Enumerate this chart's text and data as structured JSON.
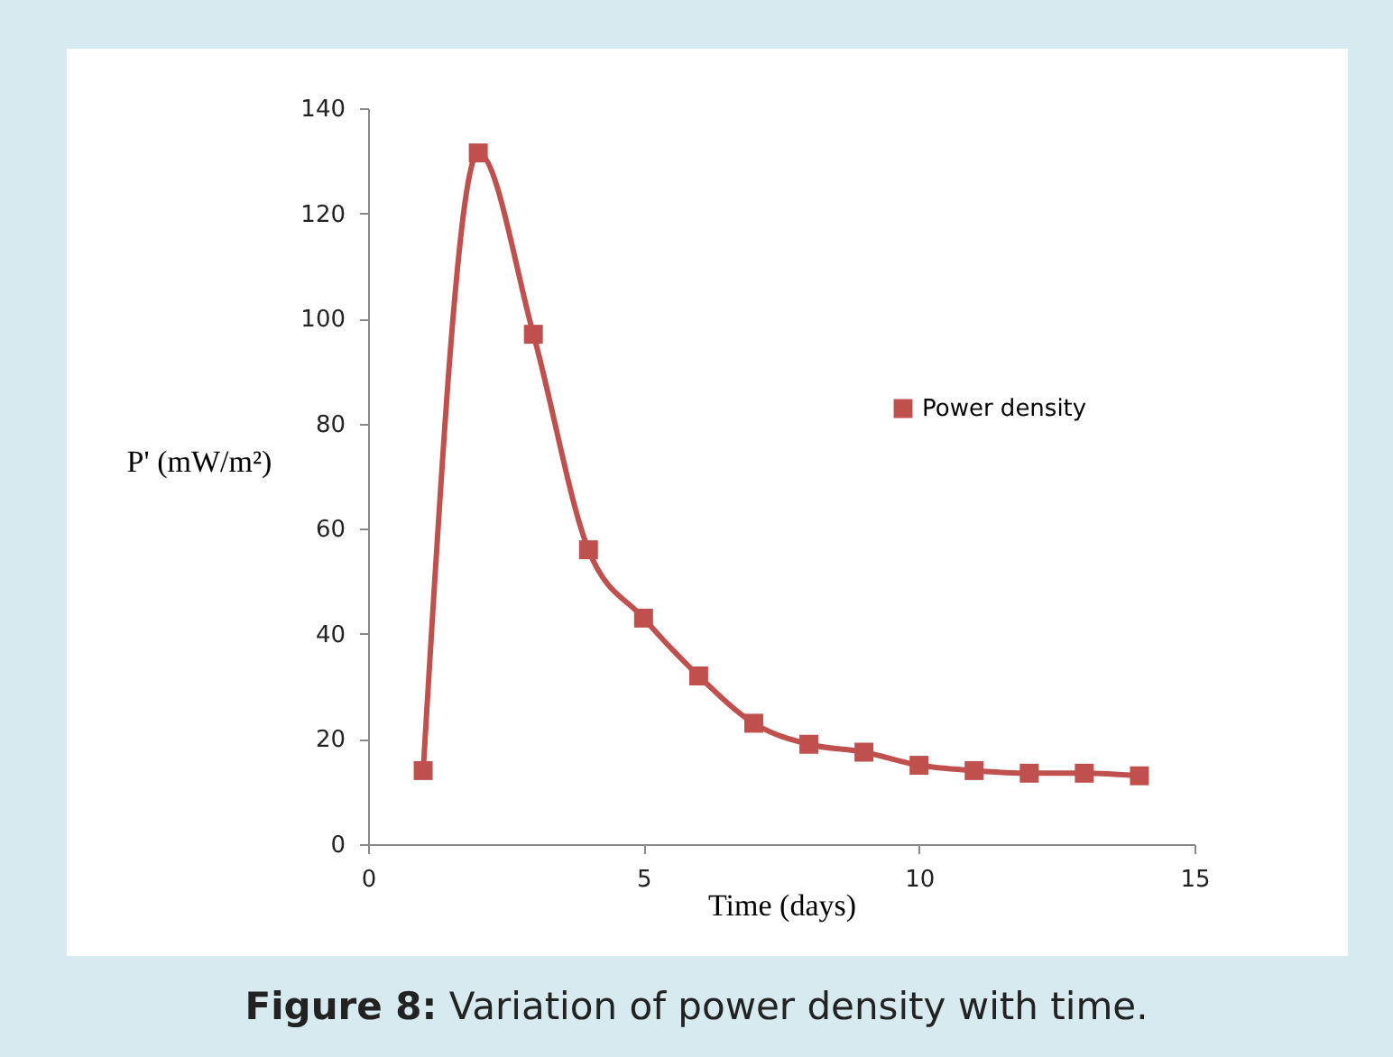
{
  "chart_data": {
    "type": "line",
    "xlabel": "Time  (days)",
    "ylabel": "P' (mW/m²)",
    "annotations": [
      "Figure 8: Variation of power density with time."
    ],
    "x": [
      1,
      2,
      3,
      4,
      5,
      6,
      7,
      8,
      9,
      10,
      11,
      12,
      13,
      14
    ],
    "series": [
      {
        "name": "Power density",
        "color": "#c0504d",
        "values": [
          14,
          131.5,
          97,
          56,
          43,
          32,
          23,
          19,
          17.5,
          15,
          14,
          13.5,
          13.5,
          13
        ]
      }
    ],
    "xlim": [
      0,
      15
    ],
    "xticks": [
      0,
      5,
      10,
      15
    ],
    "ylim": [
      0,
      140
    ],
    "yticks": [
      0,
      20,
      40,
      60,
      80,
      100,
      120,
      140
    ],
    "grid": false,
    "legend": "right",
    "marker": "square",
    "line_style": "solid"
  }
}
